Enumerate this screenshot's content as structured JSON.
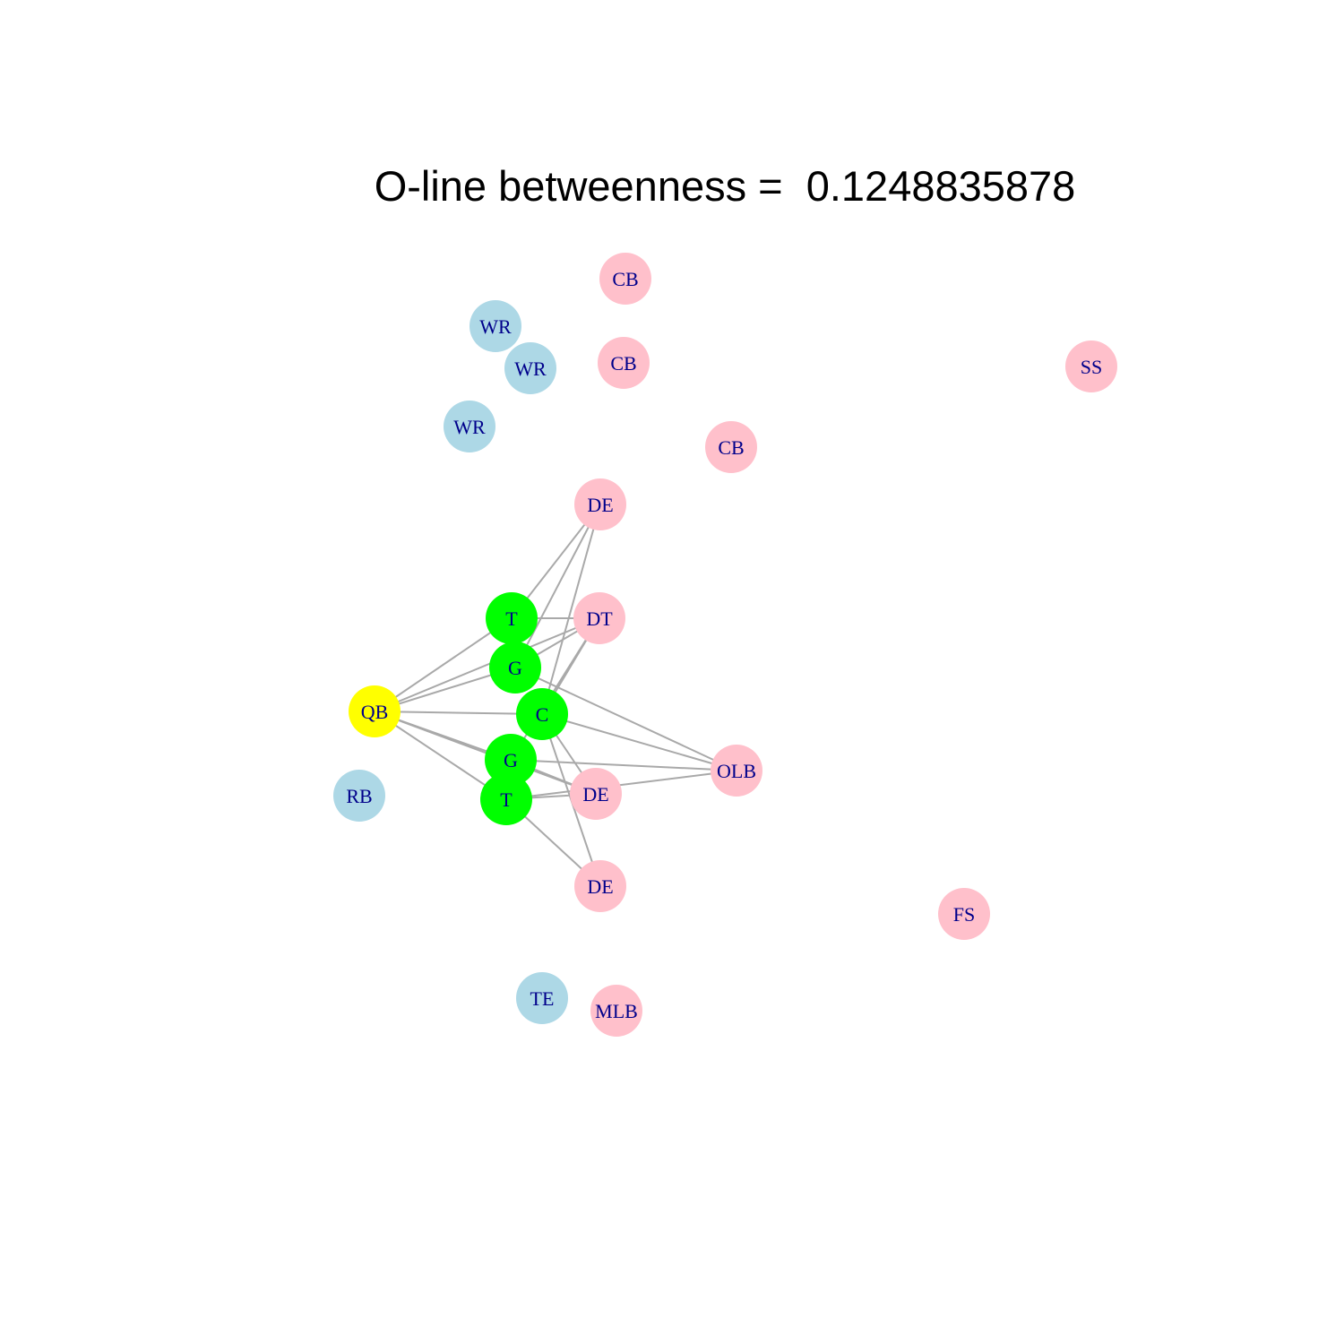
{
  "title": "O-line betweenness =  0.1248835878",
  "colors": {
    "offense_line": "#00ff00",
    "quarterback": "#ffff00",
    "offense_skill": "#add8e6",
    "defense": "#ffc0cb",
    "edge": "#a9a9a9",
    "label": "#00008b"
  },
  "nodes": [
    {
      "id": "qb",
      "label": "QB",
      "group": "quarterback"
    },
    {
      "id": "t1",
      "label": "T",
      "group": "offense_line"
    },
    {
      "id": "g1",
      "label": "G",
      "group": "offense_line"
    },
    {
      "id": "c",
      "label": "C",
      "group": "offense_line"
    },
    {
      "id": "g2",
      "label": "G",
      "group": "offense_line"
    },
    {
      "id": "t2",
      "label": "T",
      "group": "offense_line"
    },
    {
      "id": "rb",
      "label": "RB",
      "group": "offense_skill"
    },
    {
      "id": "te",
      "label": "TE",
      "group": "offense_skill"
    },
    {
      "id": "wr1",
      "label": "WR",
      "group": "offense_skill"
    },
    {
      "id": "wr2",
      "label": "WR",
      "group": "offense_skill"
    },
    {
      "id": "wr3",
      "label": "WR",
      "group": "offense_skill"
    },
    {
      "id": "cb1",
      "label": "CB",
      "group": "defense"
    },
    {
      "id": "cb2",
      "label": "CB",
      "group": "defense"
    },
    {
      "id": "cb3",
      "label": "CB",
      "group": "defense"
    },
    {
      "id": "ss",
      "label": "SS",
      "group": "defense"
    },
    {
      "id": "fs",
      "label": "FS",
      "group": "defense"
    },
    {
      "id": "de1",
      "label": "DE",
      "group": "defense"
    },
    {
      "id": "dt",
      "label": "DT",
      "group": "defense"
    },
    {
      "id": "olb",
      "label": "OLB",
      "group": "defense"
    },
    {
      "id": "de2",
      "label": "DE",
      "group": "defense"
    },
    {
      "id": "de3",
      "label": "DE",
      "group": "defense"
    },
    {
      "id": "mlb",
      "label": "MLB",
      "group": "defense"
    }
  ],
  "edges": [
    [
      "qb",
      "t1"
    ],
    [
      "qb",
      "g1"
    ],
    [
      "qb",
      "c"
    ],
    [
      "qb",
      "g2"
    ],
    [
      "qb",
      "t2"
    ],
    [
      "qb",
      "dt"
    ],
    [
      "qb",
      "de2"
    ],
    [
      "t1",
      "de1"
    ],
    [
      "t1",
      "dt"
    ],
    [
      "g1",
      "de1"
    ],
    [
      "g1",
      "dt"
    ],
    [
      "g1",
      "olb"
    ],
    [
      "c",
      "de1"
    ],
    [
      "c",
      "dt"
    ],
    [
      "c",
      "olb"
    ],
    [
      "c",
      "de2"
    ],
    [
      "c",
      "de3"
    ],
    [
      "g2",
      "dt"
    ],
    [
      "g2",
      "olb"
    ],
    [
      "g2",
      "de2"
    ],
    [
      "t2",
      "olb"
    ],
    [
      "t2",
      "de2"
    ],
    [
      "t2",
      "de3"
    ]
  ]
}
